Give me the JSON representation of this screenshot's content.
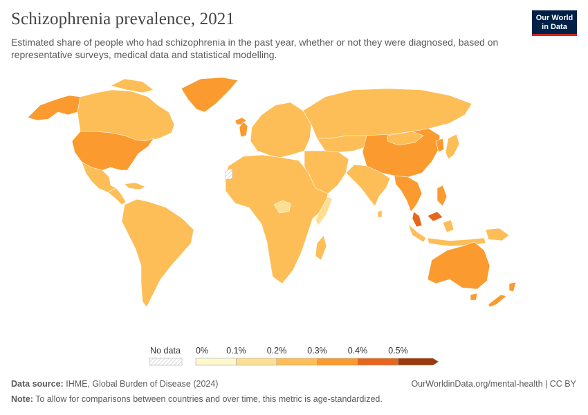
{
  "header": {
    "title": "Schizophrenia prevalence, 2021",
    "subtitle": "Estimated share of people who had schizophrenia in the past year, whether or not they were diagnosed, based on representative surveys, medical data and statistical modelling.",
    "logo_line1": "Our World",
    "logo_line2": "in Data"
  },
  "legend": {
    "no_data_label": "No data",
    "ticks": [
      "0%",
      "0.1%",
      "0.2%",
      "0.3%",
      "0.4%",
      "0.5%"
    ],
    "bin_colors": [
      "#fef8cf",
      "#fddf94",
      "#fdbe57",
      "#fb9a2f",
      "#e6661c",
      "#9c3a0e"
    ]
  },
  "map_data": {
    "unit": "%",
    "countries": [
      {
        "name": "United States",
        "bin": 3
      },
      {
        "name": "Canada",
        "bin": 2
      },
      {
        "name": "Greenland",
        "bin": 3
      },
      {
        "name": "Alaska",
        "bin": 3
      },
      {
        "name": "Mexico",
        "bin": 2
      },
      {
        "name": "South America",
        "bin": 2
      },
      {
        "name": "Africa",
        "bin": 2
      },
      {
        "name": "Central African Republic",
        "bin": 1
      },
      {
        "name": "Somalia",
        "bin": 1
      },
      {
        "name": "Europe",
        "bin": 2
      },
      {
        "name": "Russia",
        "bin": 2
      },
      {
        "name": "Middle East",
        "bin": 2
      },
      {
        "name": "India",
        "bin": 2
      },
      {
        "name": "China",
        "bin": 3
      },
      {
        "name": "Southeast Asia",
        "bin": 3
      },
      {
        "name": "Malaysia",
        "bin": 3
      },
      {
        "name": "Australia",
        "bin": 3
      },
      {
        "name": "New Zealand",
        "bin": 3
      },
      {
        "name": "Japan",
        "bin": 2
      },
      {
        "name": "Indonesia",
        "bin": 2
      }
    ]
  },
  "footer": {
    "source_label": "Data source:",
    "source_text": "IHME, Global Burden of Disease (2024)",
    "url_text": "OurWorldinData.org/mental-health | CC BY",
    "note_label": "Note:",
    "note_text": "To allow for comparisons between countries and over time, this metric is age-standardized."
  }
}
